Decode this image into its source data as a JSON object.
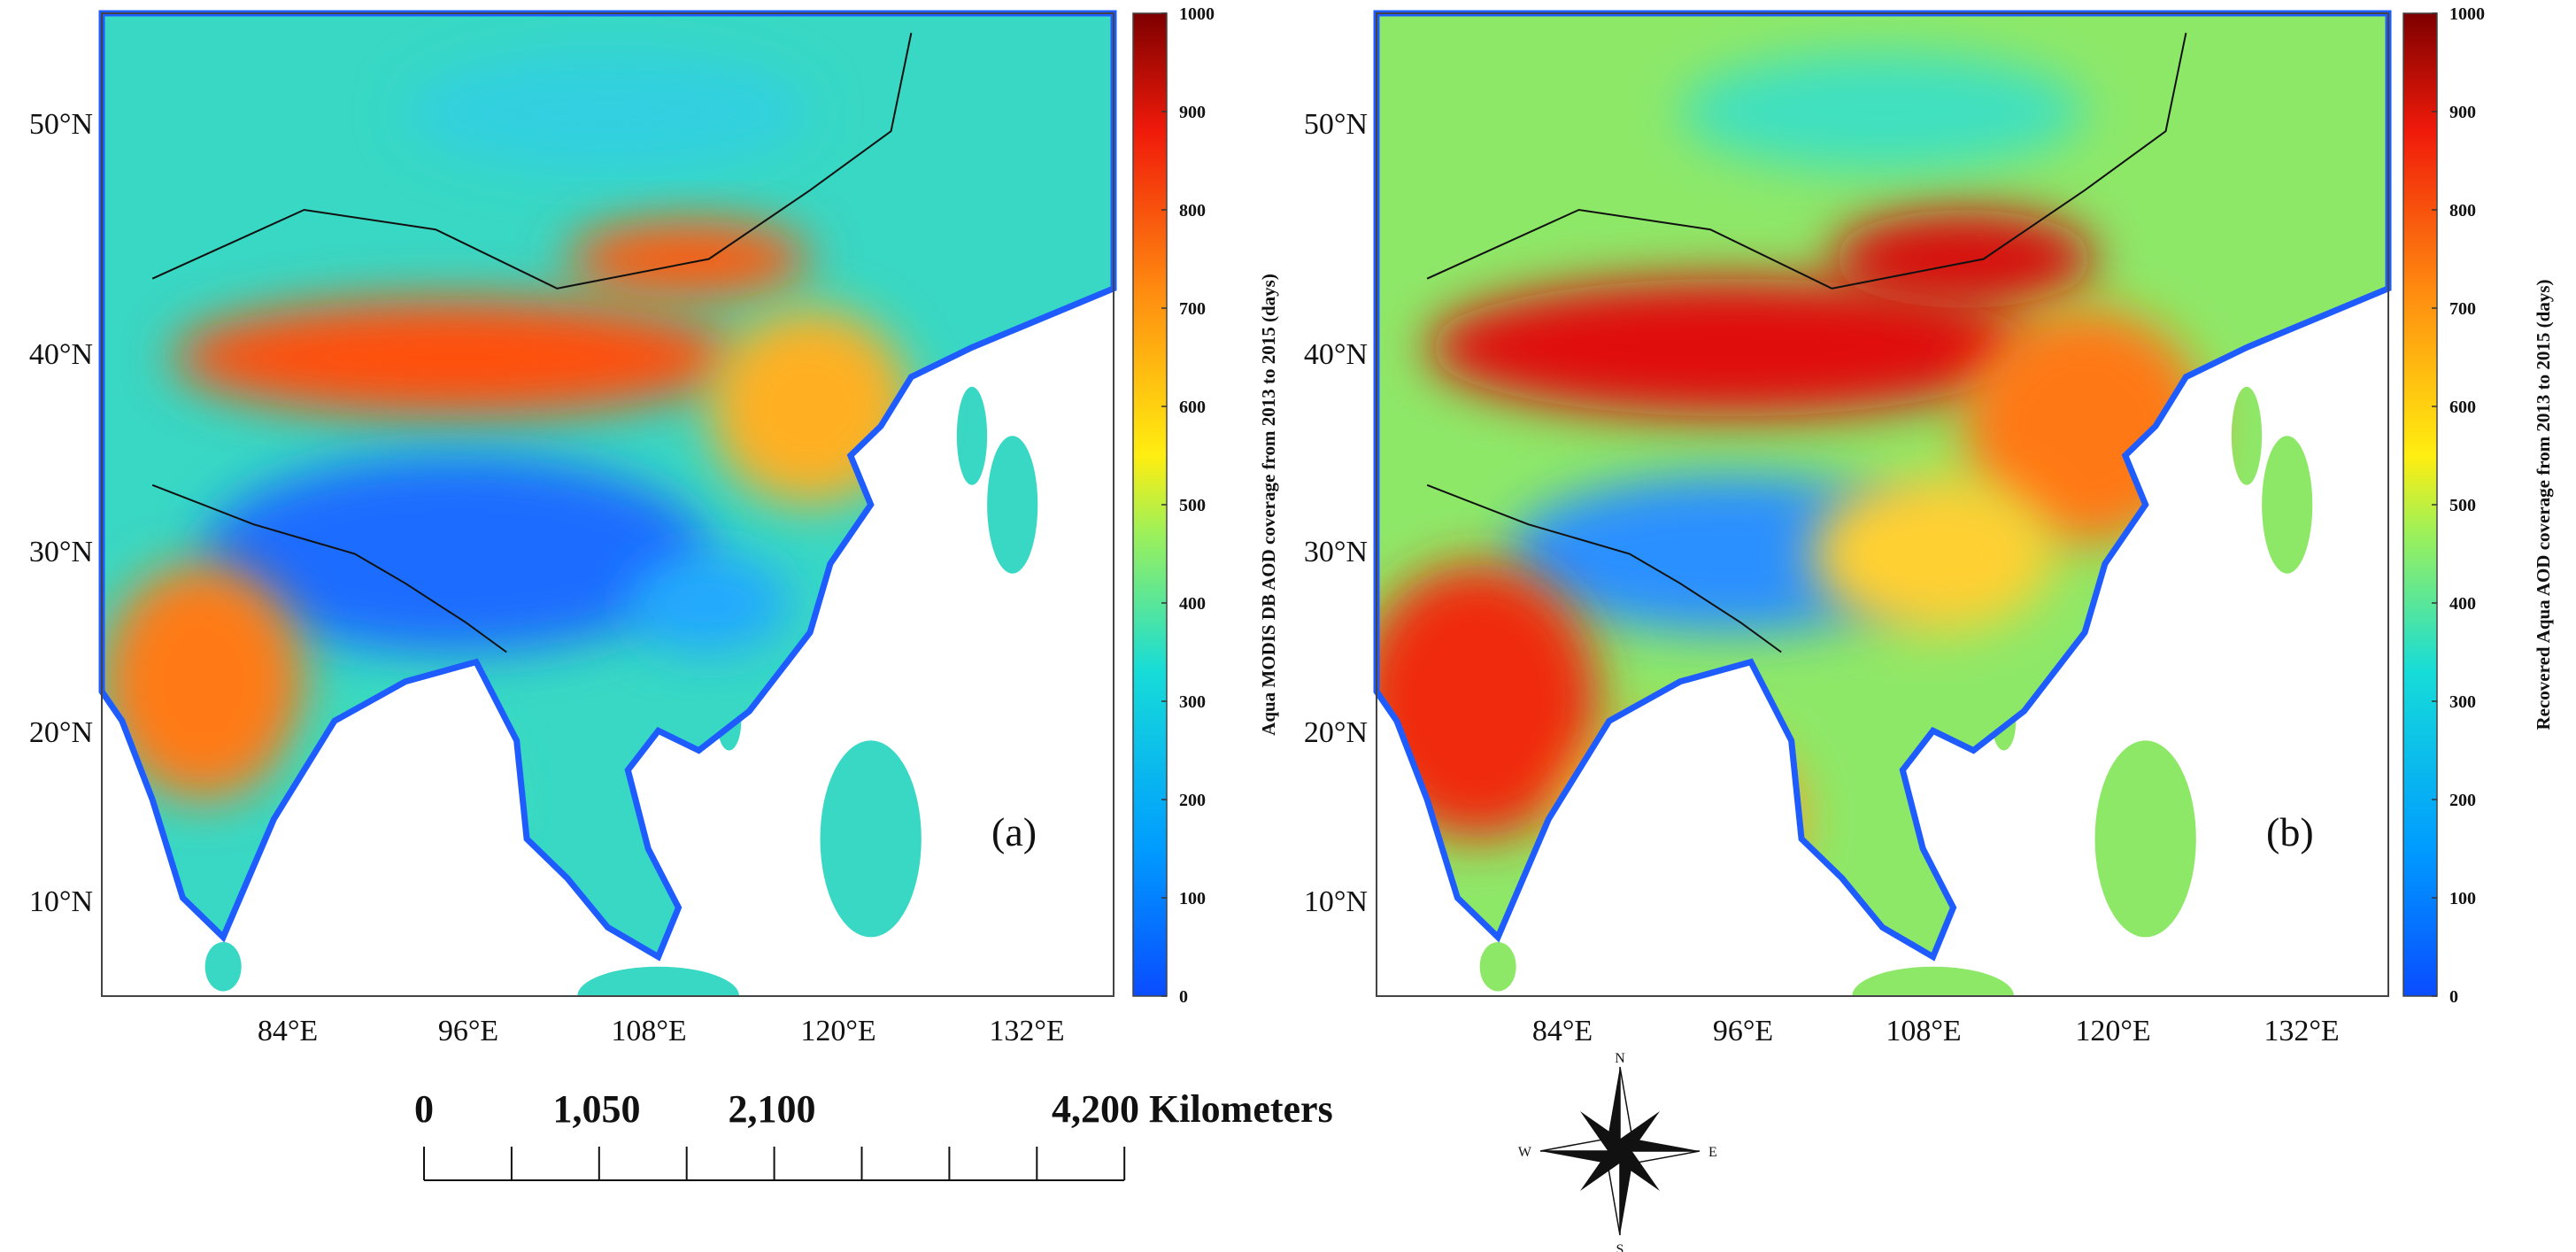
{
  "panels": [
    {
      "label": "(a)",
      "colorbar": {
        "title": "Aqua MODIS DB AOD coverage from 2013 to 2015 (days)",
        "lim": [
          0,
          1000
        ],
        "ticks": [
          0,
          100,
          200,
          300,
          400,
          500,
          600,
          700,
          800,
          900,
          1000
        ]
      }
    },
    {
      "label": "(b)",
      "colorbar": {
        "title": "Recovered Aqua AOD coverage from 2013 to 2015 (days)",
        "lim": [
          0,
          1000
        ],
        "ticks": [
          0,
          100,
          200,
          300,
          400,
          500,
          600,
          700,
          800,
          900,
          1000
        ]
      }
    }
  ],
  "latitude_labels": [
    "50°N",
    "40°N",
    "30°N",
    "20°N",
    "10°N"
  ],
  "longitude_labels": [
    "84°E",
    "96°E",
    "108°E",
    "120°E",
    "132°E"
  ],
  "scale_bar": {
    "labels": [
      "0",
      "1,050",
      "2,100",
      "4,200 Kilometers"
    ]
  },
  "compass": {
    "n": "N",
    "e": "E",
    "s": "S",
    "w": "W"
  }
}
